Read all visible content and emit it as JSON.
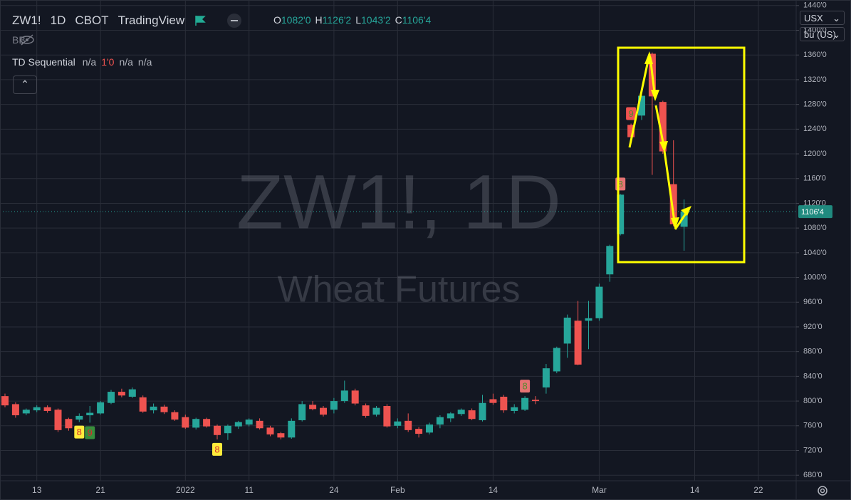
{
  "header": {
    "symbol": "ZW1!",
    "interval": "1D",
    "exchange": "CBOT",
    "source": "TradingView",
    "ohlc": [
      {
        "key": "O",
        "value": "1082'0"
      },
      {
        "key": "H",
        "value": "1126'2"
      },
      {
        "key": "L",
        "value": "1043'2"
      },
      {
        "key": "C",
        "value": "1106'4"
      }
    ]
  },
  "indicators": {
    "bb": "BB",
    "td": {
      "name": "TD Sequential",
      "values": [
        "n/a",
        "1'0",
        "n/a",
        "n/a"
      ]
    }
  },
  "toolbar": {
    "currency": "USX",
    "unit": "bu (US)"
  },
  "watermark": {
    "line1": "ZW1!, 1D",
    "line2": "Wheat Futures"
  },
  "chart_data": {
    "type": "candlestick",
    "categories": [
      null,
      null,
      null,
      "13",
      null,
      null,
      null,
      null,
      null,
      "21",
      null,
      null,
      null,
      null,
      null,
      null,
      null,
      "2022",
      null,
      null,
      null,
      null,
      null,
      "11",
      null,
      null,
      null,
      null,
      null,
      null,
      null,
      "24",
      null,
      null,
      null,
      null,
      null,
      "Feb",
      null,
      null,
      null,
      null,
      null,
      null,
      null,
      null,
      "14",
      null,
      null,
      null,
      null,
      null,
      null,
      null,
      null,
      null,
      "Mar",
      null,
      null,
      null,
      null,
      null,
      null,
      null,
      null,
      "14",
      null,
      null,
      null,
      null,
      null,
      "22",
      null,
      null,
      null
    ],
    "open": [
      808,
      795,
      780,
      785,
      790,
      786,
      771,
      770,
      777,
      780,
      797,
      815,
      807,
      806,
      785,
      791,
      782,
      774,
      757,
      771,
      760,
      748,
      759,
      762,
      768,
      757,
      748,
      741,
      769,
      794,
      789,
      786,
      800,
      817,
      793,
      778,
      792,
      760,
      768,
      755,
      749,
      762,
      772,
      779,
      785,
      769,
      803,
      807,
      784,
      786,
      802,
      822,
      848,
      893,
      930,
      930,
      934,
      1005,
      1070,
      1247,
      1262,
      1362,
      1284,
      1151,
      1082,
      null,
      null,
      null,
      null,
      null,
      null,
      null,
      null,
      null,
      null
    ],
    "high": [
      812,
      798,
      788,
      793,
      793,
      788,
      773,
      780,
      792,
      800,
      818,
      820,
      822,
      809,
      796,
      794,
      785,
      778,
      773,
      773,
      762,
      762,
      768,
      772,
      772,
      760,
      750,
      772,
      800,
      800,
      792,
      805,
      833,
      820,
      796,
      792,
      795,
      772,
      780,
      758,
      765,
      777,
      782,
      788,
      788,
      810,
      812,
      810,
      795,
      808,
      808,
      860,
      888,
      940,
      962,
      962,
      990,
      1053,
      1135,
      1249,
      1294,
      1364,
      1286,
      1222,
      1126.25,
      null,
      null,
      null,
      null,
      null,
      null,
      null,
      null,
      null,
      null
    ],
    "low": [
      790,
      773,
      777,
      782,
      781,
      750,
      752,
      766,
      765,
      778,
      795,
      806,
      805,
      781,
      780,
      779,
      768,
      755,
      754,
      757,
      738,
      737,
      755,
      759,
      754,
      743,
      738,
      739,
      767,
      785,
      775,
      780,
      797,
      793,
      773,
      775,
      757,
      756,
      750,
      741,
      746,
      756,
      766,
      776,
      769,
      767,
      794,
      781,
      780,
      784,
      795,
      812,
      845,
      870,
      858,
      884,
      930,
      993,
      1068,
      1225,
      1255,
      1166,
      1200,
      1083,
      1043.25,
      null,
      null,
      null,
      null,
      null,
      null,
      null,
      null,
      null,
      null
    ],
    "close": [
      793,
      777,
      786,
      790,
      784,
      753,
      756,
      776,
      781,
      798,
      815,
      809,
      819,
      783,
      791,
      782,
      770,
      757,
      771,
      759,
      745,
      760,
      766,
      770,
      756,
      746,
      741,
      768,
      795,
      787,
      778,
      800,
      817,
      796,
      776,
      789,
      759,
      767,
      753,
      747,
      762,
      774,
      780,
      786,
      771,
      797,
      797,
      785,
      790,
      805,
      800,
      853,
      886,
      935,
      859,
      934,
      985,
      1051,
      1134,
      1227,
      1294,
      1293,
      1204,
      1086,
      1106.5,
      null,
      null,
      null,
      null,
      null,
      null,
      null,
      null,
      null,
      null
    ],
    "up_color": "#26a69a",
    "down_color": "#ef5350",
    "ylim": [
      671,
      1449
    ],
    "yticks": [
      {
        "value": 680,
        "label": "680'0"
      },
      {
        "value": 720,
        "label": "720'0"
      },
      {
        "value": 760,
        "label": "760'0"
      },
      {
        "value": 800,
        "label": "800'0"
      },
      {
        "value": 840,
        "label": "840'0"
      },
      {
        "value": 880,
        "label": "880'0"
      },
      {
        "value": 920,
        "label": "920'0"
      },
      {
        "value": 960,
        "label": "960'0"
      },
      {
        "value": 1000,
        "label": "1000'0"
      },
      {
        "value": 1040,
        "label": "1040'0"
      },
      {
        "value": 1080,
        "label": "1080'0"
      },
      {
        "value": 1120,
        "label": "1120'0"
      },
      {
        "value": 1160,
        "label": "1160'0"
      },
      {
        "value": 1200,
        "label": "1200'0"
      },
      {
        "value": 1240,
        "label": "1240'0"
      },
      {
        "value": 1280,
        "label": "1280'0"
      },
      {
        "value": 1320,
        "label": "1320'0"
      },
      {
        "value": 1360,
        "label": "1360'0"
      },
      {
        "value": 1400,
        "label": "1400'0"
      },
      {
        "value": 1440,
        "label": "1440'0"
      }
    ],
    "grid": true,
    "last_price_label": "1106'4",
    "td_buy": [
      null,
      null,
      null,
      null,
      null,
      null,
      null,
      {
        "label": "8",
        "color": "#ffeb3b"
      },
      {
        "label": "9",
        "color": "#388e3c"
      },
      null,
      null,
      null,
      null,
      null,
      null,
      null,
      null,
      null,
      null,
      null,
      {
        "label": "8",
        "color": "#ffeb3b"
      },
      null,
      null,
      null,
      null,
      null,
      null,
      null,
      null,
      null,
      null,
      null,
      null,
      null,
      null,
      null,
      null,
      null,
      null,
      null,
      null,
      null,
      null,
      null,
      null,
      null,
      null,
      null,
      null,
      null,
      null,
      null,
      null,
      null,
      null,
      null,
      null,
      null,
      null,
      null,
      null,
      null,
      null,
      null,
      null,
      null,
      null,
      null,
      null,
      null,
      null,
      null,
      null,
      null,
      null
    ],
    "td_sell": [
      null,
      null,
      null,
      null,
      null,
      null,
      null,
      null,
      null,
      null,
      null,
      null,
      null,
      null,
      null,
      null,
      null,
      null,
      null,
      null,
      null,
      null,
      null,
      null,
      null,
      null,
      null,
      null,
      null,
      null,
      null,
      null,
      null,
      null,
      null,
      null,
      null,
      null,
      null,
      null,
      null,
      null,
      null,
      null,
      null,
      null,
      null,
      null,
      null,
      {
        "label": "8",
        "color": "#e57373"
      },
      null,
      null,
      null,
      null,
      null,
      null,
      null,
      null,
      {
        "label": "8",
        "color": "#e57373"
      },
      {
        "label": "9",
        "color": "#ef5350"
      },
      null,
      null,
      null,
      null,
      null,
      null,
      null,
      null,
      null,
      null,
      null,
      null,
      null,
      null,
      null
    ]
  }
}
